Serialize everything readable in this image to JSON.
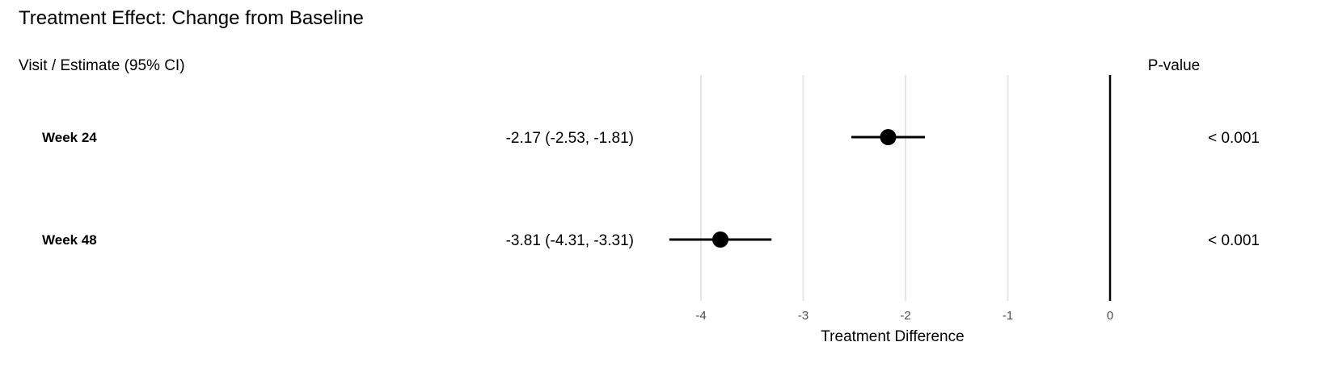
{
  "chart_data": {
    "type": "forest",
    "title": "Treatment Effect: Change from Baseline",
    "left_header": "Visit / Estimate (95% CI)",
    "right_header": "P-value",
    "xlabel": "Treatment Difference",
    "xlim": [
      -4.5,
      0
    ],
    "xticks": [
      -4,
      -3,
      -2,
      -1,
      0
    ],
    "xtick_labels": [
      "-4",
      "-3",
      "-2",
      "-1",
      "0"
    ],
    "reference_line": 0,
    "grid": "vertical major",
    "rows": [
      {
        "label": "Week 24",
        "estimate": -2.17,
        "lower": -2.53,
        "upper": -1.81,
        "estimate_text": "-2.17 (-2.53, -1.81)",
        "p_value": "< 0.001"
      },
      {
        "label": "Week 48",
        "estimate": -3.81,
        "lower": -4.31,
        "upper": -3.31,
        "estimate_text": "-3.81 (-4.31, -3.31)",
        "p_value": "< 0.001"
      }
    ],
    "colors": {
      "point": "#000000",
      "grid": "#e5e5e5",
      "reference": "#000000",
      "tick_text": "#4d4d4d"
    }
  }
}
